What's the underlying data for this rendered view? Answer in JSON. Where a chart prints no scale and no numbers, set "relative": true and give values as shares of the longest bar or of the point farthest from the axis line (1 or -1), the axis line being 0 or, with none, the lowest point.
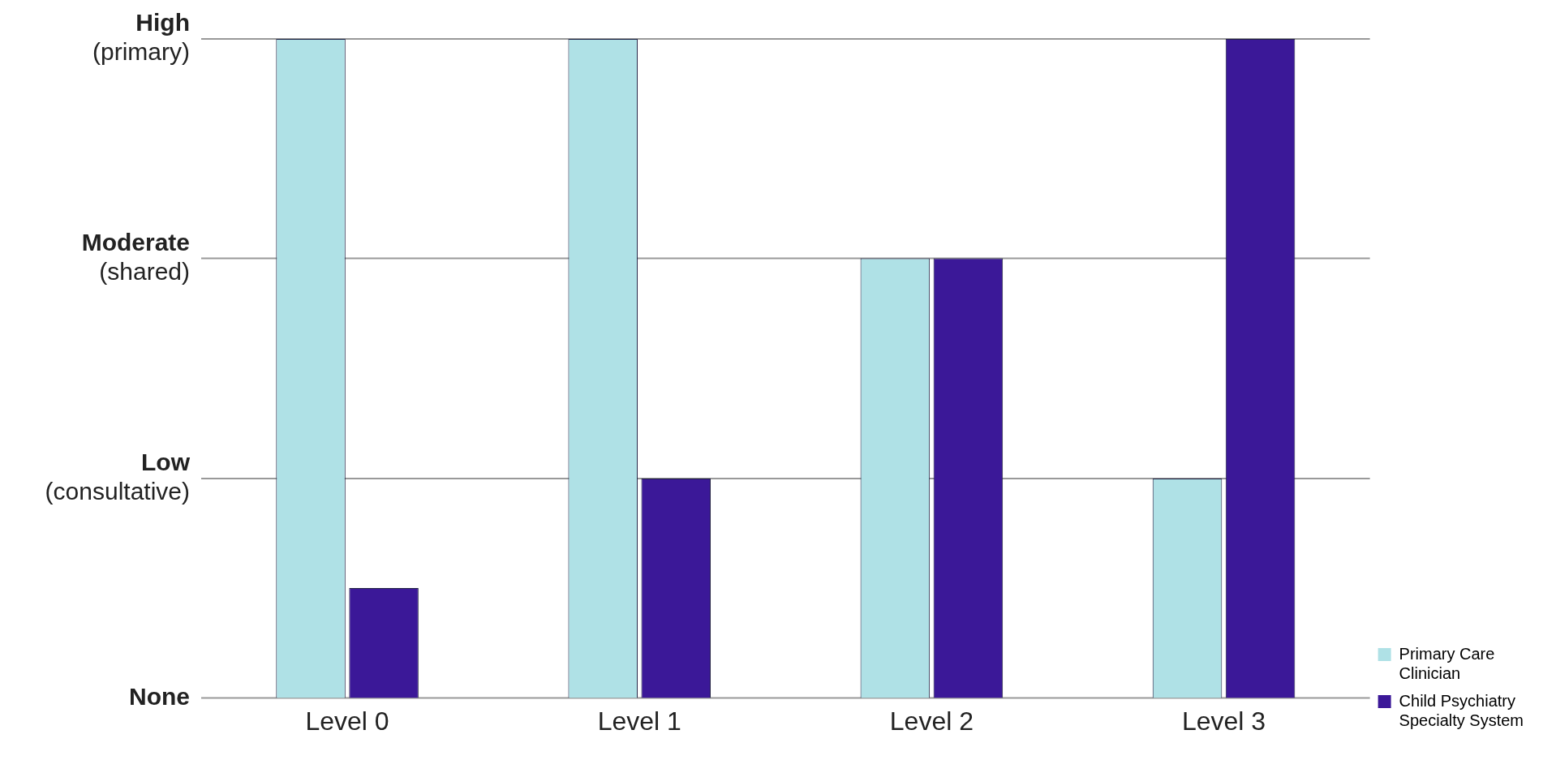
{
  "chart_data": {
    "type": "bar",
    "relative": true,
    "categories": [
      "Level 0",
      "Level 1",
      "Level 2",
      "Level 3"
    ],
    "series": [
      {
        "name": "Primary Care Clinician",
        "color": "#afe1e6",
        "values": [
          1,
          1,
          0.667,
          0.333
        ]
      },
      {
        "name": "Child Psychiatry Specialty System",
        "color": "#3b1898",
        "values": [
          0.167,
          0.333,
          0.667,
          1
        ]
      }
    ],
    "ref_lines": [
      {
        "axis": "y",
        "value": 0,
        "label": "None"
      },
      {
        "axis": "y",
        "value": 0.333,
        "label": "Low (consultative)"
      },
      {
        "axis": "y",
        "value": 0.667,
        "label": "Moderate (shared)"
      },
      {
        "axis": "y",
        "value": 1,
        "label": "High (primary)"
      }
    ],
    "legend": "bottom right"
  }
}
